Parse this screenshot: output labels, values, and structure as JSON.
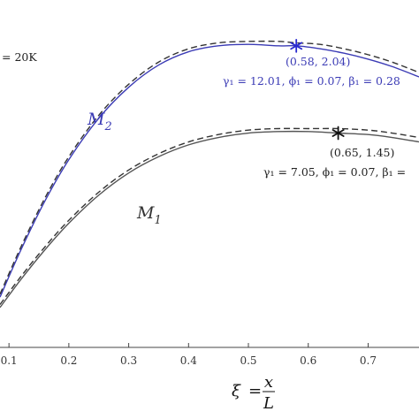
{
  "chart_data": {
    "type": "line",
    "xlim": [
      0.085,
      0.785
    ],
    "ylim": [
      0.0,
      2.35
    ],
    "x_ticks": [
      "0.1",
      "0.2",
      "0.3",
      "0.4",
      "0.5",
      "0.6",
      "0.7"
    ],
    "x_tick_values": [
      0.1,
      0.2,
      0.3,
      0.4,
      0.5,
      0.6,
      0.7
    ],
    "xlabel": {
      "lhs": "ξ",
      "eq": "=",
      "num": "x",
      "den": "L"
    },
    "top_left_annotation": "= 20K",
    "grid": false,
    "series": [
      {
        "name": "M2",
        "label_main": "M",
        "label_sub": "2",
        "color": "#3b3bb5",
        "x": [
          0.085,
          0.12,
          0.16,
          0.2,
          0.25,
          0.3,
          0.35,
          0.4,
          0.45,
          0.5,
          0.55,
          0.58,
          0.62,
          0.66,
          0.7,
          0.74,
          0.785
        ],
        "y": [
          0.34,
          0.66,
          0.99,
          1.27,
          1.55,
          1.76,
          1.91,
          2.0,
          2.04,
          2.05,
          2.04,
          2.04,
          2.02,
          1.99,
          1.95,
          1.9,
          1.83
        ],
        "y_dashed": [
          0.36,
          0.68,
          1.01,
          1.29,
          1.57,
          1.78,
          1.93,
          2.02,
          2.06,
          2.07,
          2.07,
          2.06,
          2.05,
          2.02,
          1.98,
          1.93,
          1.86
        ],
        "peak": {
          "x": 0.58,
          "y": 2.04,
          "label": "(0.58, 2.04)"
        },
        "params_label": "γ₁ = 12.01, ϕ₁ = 0.07, β₁ = 0.28"
      },
      {
        "name": "M1",
        "label_main": "M",
        "label_sub": "1",
        "color": "#555555",
        "x": [
          0.085,
          0.12,
          0.16,
          0.2,
          0.25,
          0.3,
          0.35,
          0.4,
          0.45,
          0.5,
          0.55,
          0.6,
          0.65,
          0.7,
          0.74,
          0.785
        ],
        "y": [
          0.27,
          0.46,
          0.66,
          0.84,
          1.03,
          1.18,
          1.29,
          1.37,
          1.42,
          1.45,
          1.46,
          1.46,
          1.45,
          1.44,
          1.42,
          1.39
        ],
        "y_dashed": [
          0.29,
          0.48,
          0.68,
          0.86,
          1.05,
          1.2,
          1.31,
          1.39,
          1.44,
          1.47,
          1.48,
          1.48,
          1.48,
          1.47,
          1.45,
          1.42
        ],
        "peak": {
          "x": 0.65,
          "y": 1.45,
          "label": "(0.65, 1.45)"
        },
        "params_label": "γ₁ = 7.05, ϕ₁ = 0.07, β₁ ="
      }
    ]
  }
}
